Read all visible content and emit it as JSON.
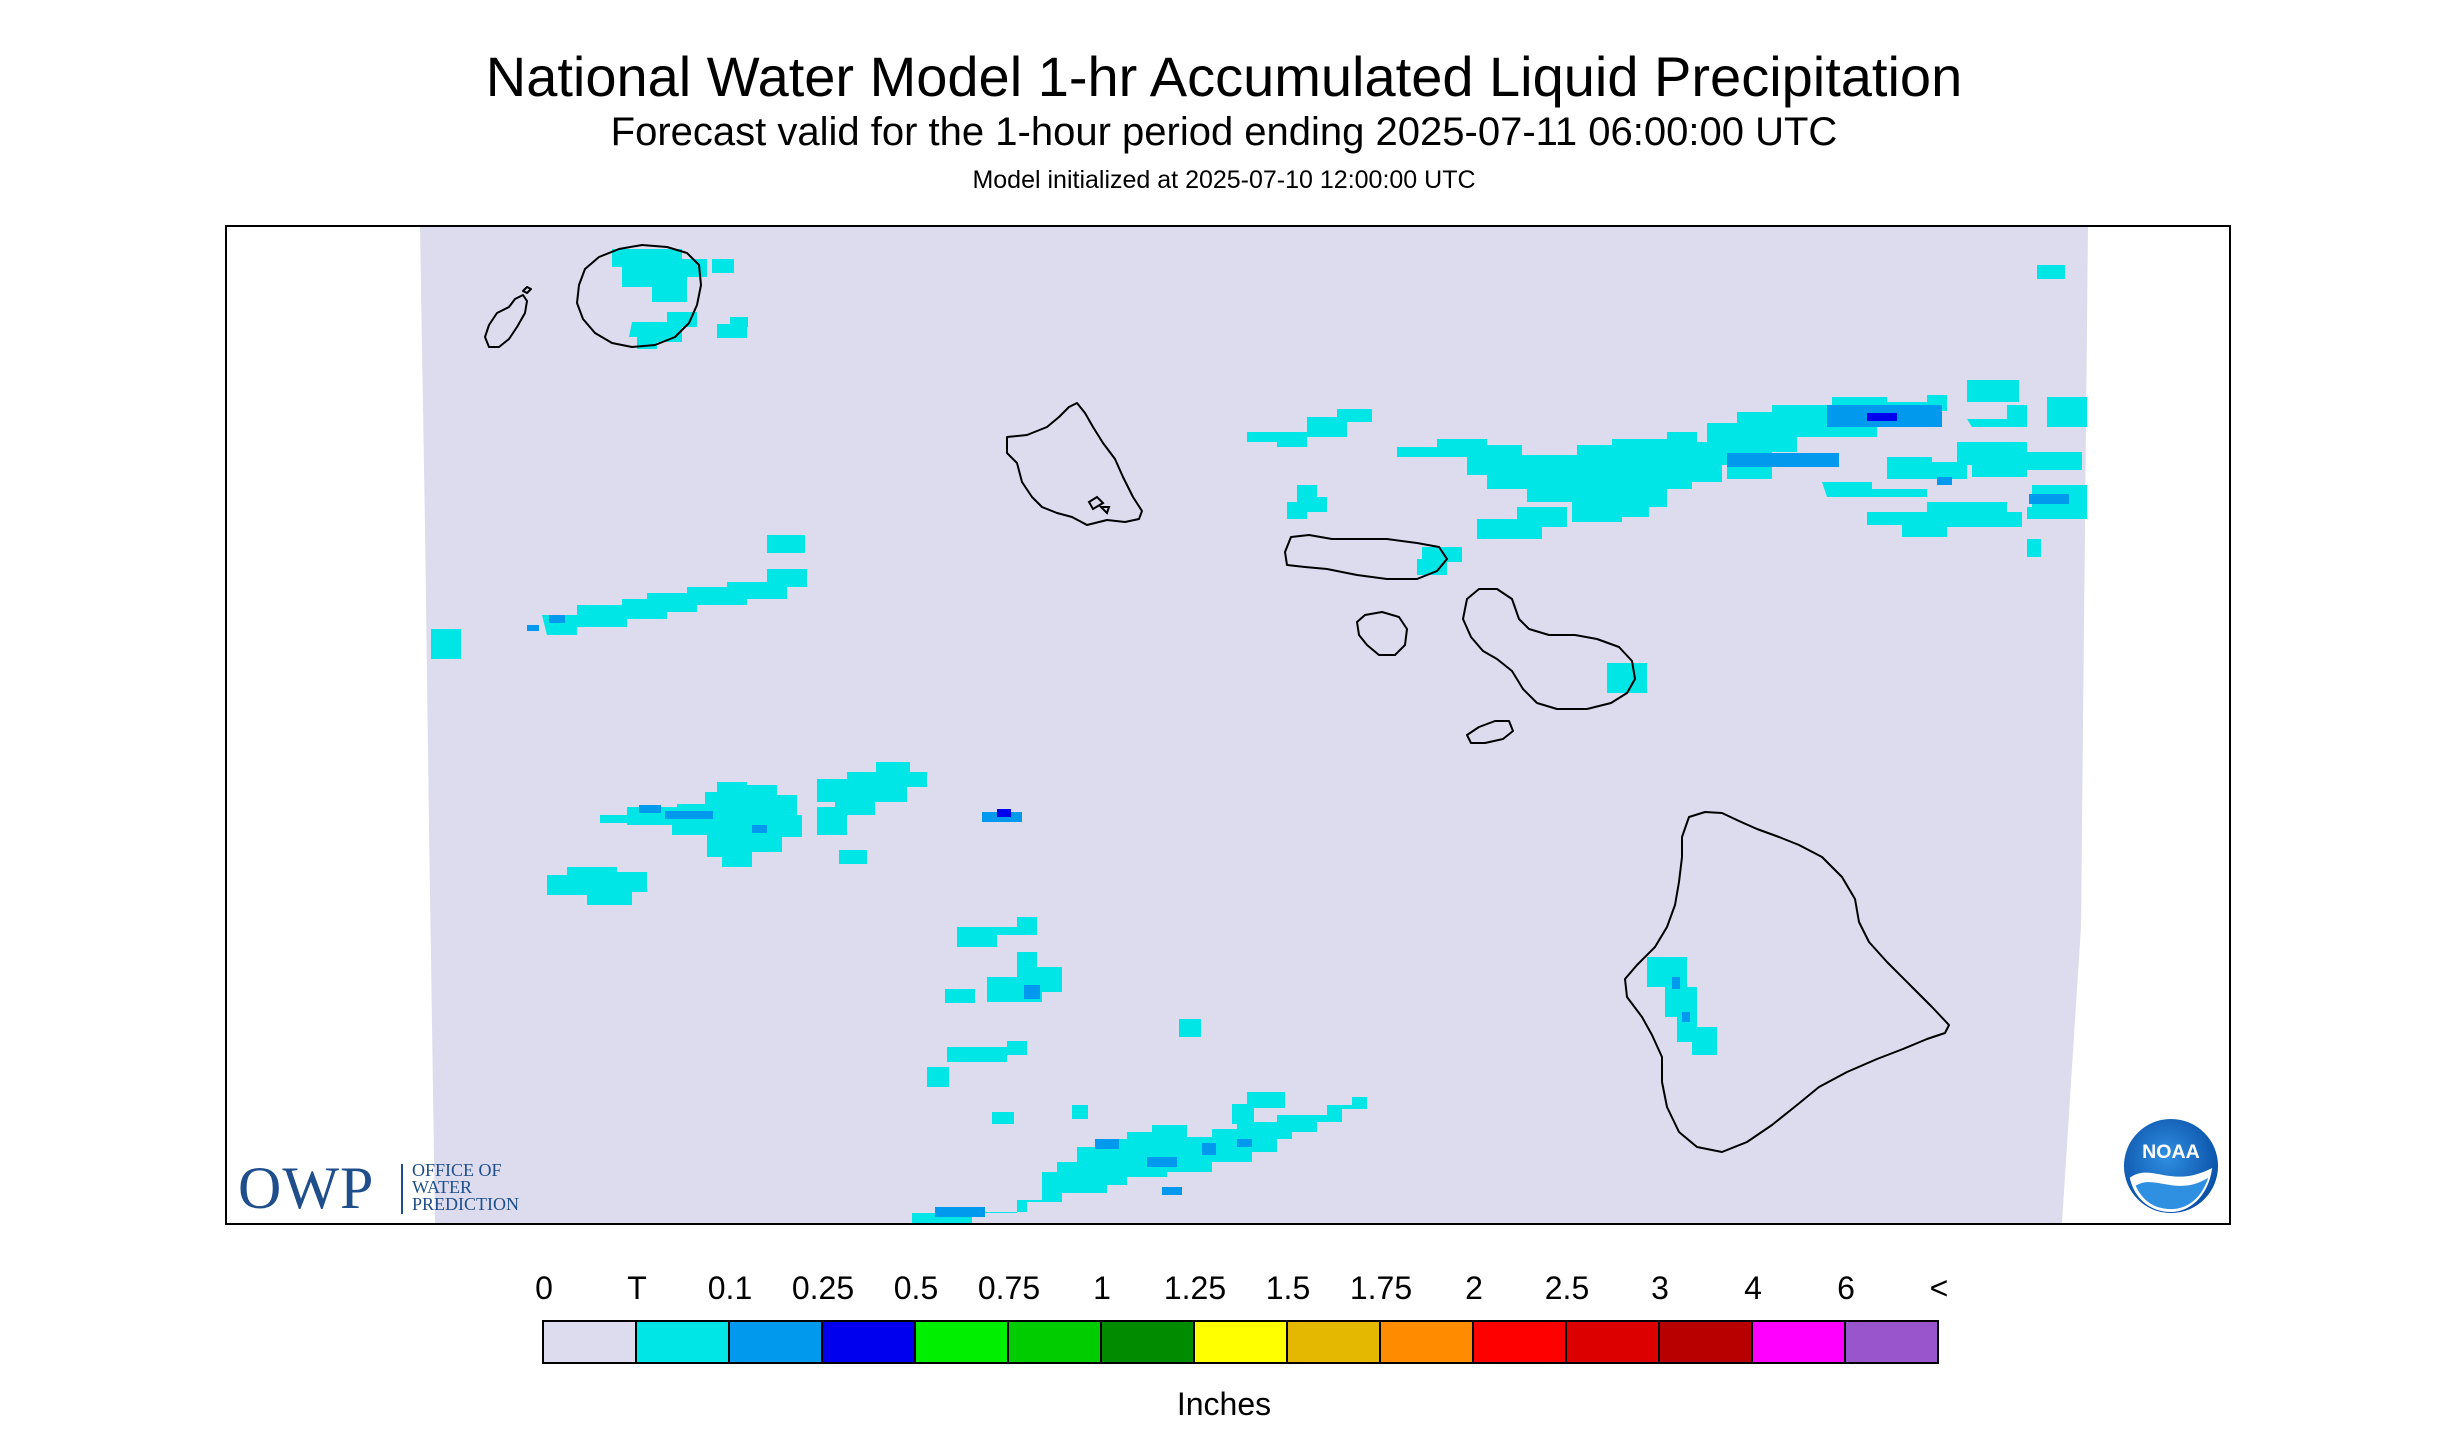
{
  "header": {
    "title": "National Water Model 1-hr Accumulated Liquid Precipitation",
    "subtitle": "Forecast valid for the 1-hour period ending 2025-07-11 06:00:00 UTC",
    "init_line": "Model initialized at 2025-07-10 12:00:00 UTC"
  },
  "map": {
    "background_color": "#dcdcee",
    "coastline_color": "#000000",
    "islands": [
      "Niihau",
      "Kauai",
      "Oahu",
      "Molokai",
      "Lanai",
      "Maui",
      "Kahoolawe",
      "Hawaii"
    ]
  },
  "logos": {
    "owp": {
      "main": "OWP",
      "line1": "OFFICE OF",
      "line2": "WATER",
      "line3": "PREDICTION"
    },
    "noaa": {
      "text": "NOAA",
      "color": "#1565c0"
    }
  },
  "legend": {
    "units": "Inches",
    "labels": [
      "0",
      "T",
      "0.1",
      "0.25",
      "0.5",
      "0.75",
      "1",
      "1.25",
      "1.5",
      "1.75",
      "2",
      "2.5",
      "3",
      "4",
      "6",
      "<"
    ],
    "colors": [
      "#dcdcee",
      "#00e5e5",
      "#0099ee",
      "#0000ee",
      "#00ee00",
      "#00cc00",
      "#008b00",
      "#ffff00",
      "#e5b800",
      "#ff8c00",
      "#ff0000",
      "#dd0000",
      "#b80000",
      "#ff00ff",
      "#9955cc"
    ]
  }
}
